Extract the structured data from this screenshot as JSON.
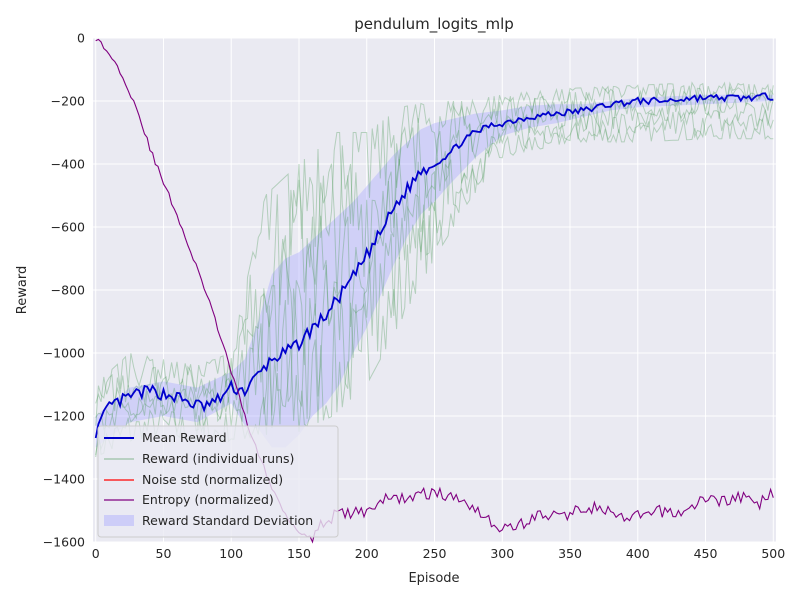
{
  "chart_data": {
    "type": "line",
    "title": "pendulum_logits_mlp",
    "xlabel": "Episode",
    "ylabel": "Reward",
    "xlim": [
      -2,
      502
    ],
    "ylim": [
      -1600,
      0
    ],
    "xticks": [
      0,
      50,
      100,
      150,
      200,
      250,
      300,
      350,
      400,
      450,
      500
    ],
    "yticks": [
      0,
      -200,
      -400,
      -600,
      -800,
      -1000,
      -1200,
      -1400,
      -1600
    ],
    "xtick_labels": [
      "0",
      "50",
      "100",
      "150",
      "200",
      "250",
      "300",
      "350",
      "400",
      "450",
      "500"
    ],
    "ytick_labels": [
      "0",
      "−200",
      "−400",
      "−600",
      "−800",
      "−1000",
      "−1200",
      "−1400",
      "−1600"
    ],
    "grid": true,
    "legend_position": "lower-left",
    "series": [
      {
        "name": "Mean Reward",
        "color": "#0000cc",
        "style": "line",
        "x": [
          0,
          10,
          20,
          30,
          40,
          50,
          60,
          70,
          80,
          90,
          100,
          110,
          120,
          130,
          140,
          150,
          160,
          170,
          180,
          190,
          200,
          210,
          220,
          230,
          240,
          250,
          260,
          270,
          280,
          290,
          300,
          320,
          340,
          360,
          380,
          400,
          420,
          440,
          460,
          480,
          500
        ],
        "y": [
          -1250,
          -1170,
          -1150,
          -1130,
          -1120,
          -1130,
          -1140,
          -1160,
          -1170,
          -1150,
          -1110,
          -1120,
          -1070,
          -1020,
          -1000,
          -970,
          -920,
          -880,
          -820,
          -760,
          -690,
          -620,
          -540,
          -480,
          -420,
          -400,
          -370,
          -330,
          -300,
          -280,
          -270,
          -250,
          -240,
          -230,
          -210,
          -200,
          -200,
          -190,
          -190,
          -190,
          -185
        ]
      },
      {
        "name": "Reward (individual runs)",
        "color": "#4c9a5a",
        "style": "band-lines",
        "x": [
          0,
          25,
          50,
          75,
          100,
          125,
          150,
          175,
          200,
          225,
          250,
          275,
          300,
          350,
          400,
          450,
          500
        ],
        "upper": [
          -1100,
          -1000,
          -1020,
          -1040,
          -1000,
          -500,
          -400,
          -300,
          -300,
          -220,
          -200,
          -200,
          -180,
          -160,
          -150,
          -140,
          -150
        ],
        "lower": [
          -1330,
          -1280,
          -1260,
          -1280,
          -1280,
          -1260,
          -1250,
          -1200,
          -1100,
          -900,
          -700,
          -520,
          -380,
          -330,
          -330,
          -320,
          -320
        ]
      },
      {
        "name": "Noise std (normalized)",
        "color": "#ff0000",
        "style": "line",
        "x": [],
        "y": []
      },
      {
        "name": "Entropy (normalized)",
        "color": "#800080",
        "style": "line",
        "x": [
          0,
          10,
          20,
          30,
          40,
          50,
          60,
          70,
          80,
          90,
          100,
          110,
          120,
          130,
          140,
          150,
          160,
          170,
          180,
          190,
          200,
          210,
          220,
          230,
          240,
          250,
          260,
          270,
          280,
          290,
          300,
          310,
          320,
          330,
          340,
          350,
          360,
          370,
          380,
          390,
          400,
          410,
          420,
          430,
          440,
          450,
          460,
          470,
          480,
          490,
          500
        ],
        "y": [
          0,
          -50,
          -120,
          -220,
          -350,
          -460,
          -560,
          -680,
          -790,
          -920,
          -1060,
          -1200,
          -1320,
          -1430,
          -1510,
          -1570,
          -1580,
          -1530,
          -1510,
          -1510,
          -1500,
          -1470,
          -1460,
          -1460,
          -1450,
          -1440,
          -1460,
          -1460,
          -1490,
          -1530,
          -1560,
          -1550,
          -1530,
          -1510,
          -1520,
          -1510,
          -1490,
          -1490,
          -1510,
          -1530,
          -1520,
          -1510,
          -1500,
          -1510,
          -1490,
          -1460,
          -1470,
          -1460,
          -1460,
          -1480,
          -1440
        ]
      },
      {
        "name": "Reward Standard Deviation",
        "color": "#aaaaff",
        "style": "band",
        "x": [
          0,
          25,
          50,
          75,
          100,
          110,
          120,
          130,
          140,
          150,
          160,
          170,
          180,
          190,
          200,
          210,
          220,
          230,
          240,
          250,
          260,
          280,
          300,
          320,
          340,
          360,
          380,
          400,
          450,
          500
        ],
        "upper": [
          -1200,
          -1110,
          -1090,
          -1110,
          -1060,
          -1020,
          -900,
          -750,
          -700,
          -680,
          -640,
          -600,
          -560,
          -520,
          -470,
          -420,
          -370,
          -330,
          -290,
          -270,
          -260,
          -240,
          -230,
          -215,
          -210,
          -210,
          -200,
          -190,
          -180,
          -180
        ],
        "lower": [
          -1300,
          -1220,
          -1200,
          -1220,
          -1160,
          -1230,
          -1240,
          -1300,
          -1300,
          -1260,
          -1200,
          -1160,
          -1100,
          -1000,
          -920,
          -820,
          -720,
          -630,
          -560,
          -520,
          -470,
          -380,
          -310,
          -285,
          -270,
          -250,
          -230,
          -220,
          -210,
          -200
        ]
      }
    ]
  }
}
